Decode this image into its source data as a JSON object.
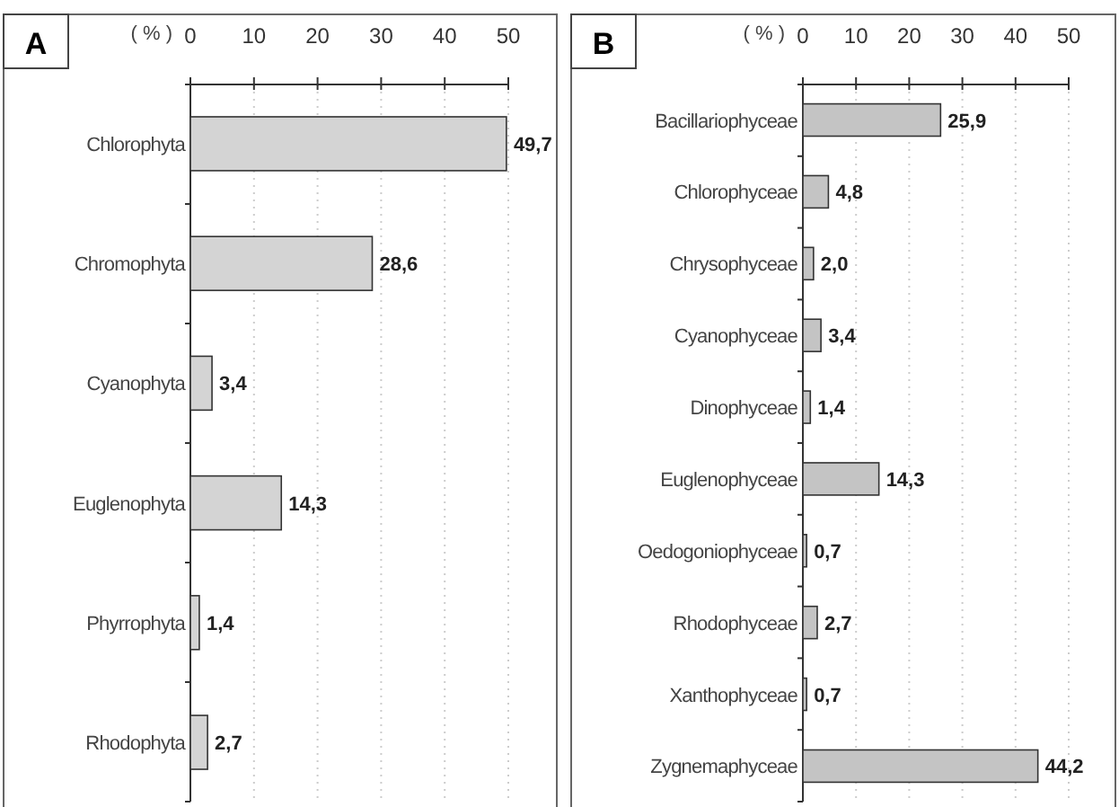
{
  "chart_data": [
    {
      "type": "bar",
      "orientation": "horizontal",
      "title": "A",
      "xlabel": "( % )",
      "categories": [
        "Chlorophyta",
        "Chromophyta",
        "Cyanophyta",
        "Euglenophyta",
        "Phyrrophyta",
        "Rhodophyta"
      ],
      "values": [
        49.7,
        28.6,
        3.4,
        14.3,
        1.4,
        2.7
      ],
      "value_labels": [
        "49,7",
        "28,6",
        "3,4",
        "14,3",
        "1,4",
        "2,7"
      ],
      "color": "#d4d4d4",
      "xlim": [
        0,
        50
      ],
      "xticks": [
        0,
        10,
        20,
        30,
        40,
        50
      ],
      "grid": "x"
    },
    {
      "type": "bar",
      "orientation": "horizontal",
      "title": "B",
      "xlabel": "( % )",
      "categories": [
        "Bacillariophyceae",
        "Chlorophyceae",
        "Chrysophyceae",
        "Cyanophyceae",
        "Dinophyceae",
        "Euglenophyceae",
        "Oedogoniophyceae",
        "Rhodophyceae",
        "Xanthophyceae",
        "Zygnemaphyceae"
      ],
      "values": [
        25.9,
        4.8,
        2.0,
        3.4,
        1.4,
        14.3,
        0.7,
        2.7,
        0.7,
        44.2
      ],
      "value_labels": [
        "25,9",
        "4,8",
        "2,0",
        "3,4",
        "1,4",
        "14,3",
        "0,7",
        "2,7",
        "0,7",
        "44,2"
      ],
      "color": "#c4c4c4",
      "xlim": [
        0,
        50
      ],
      "xticks": [
        0,
        10,
        20,
        30,
        40,
        50
      ],
      "grid": "x"
    }
  ]
}
